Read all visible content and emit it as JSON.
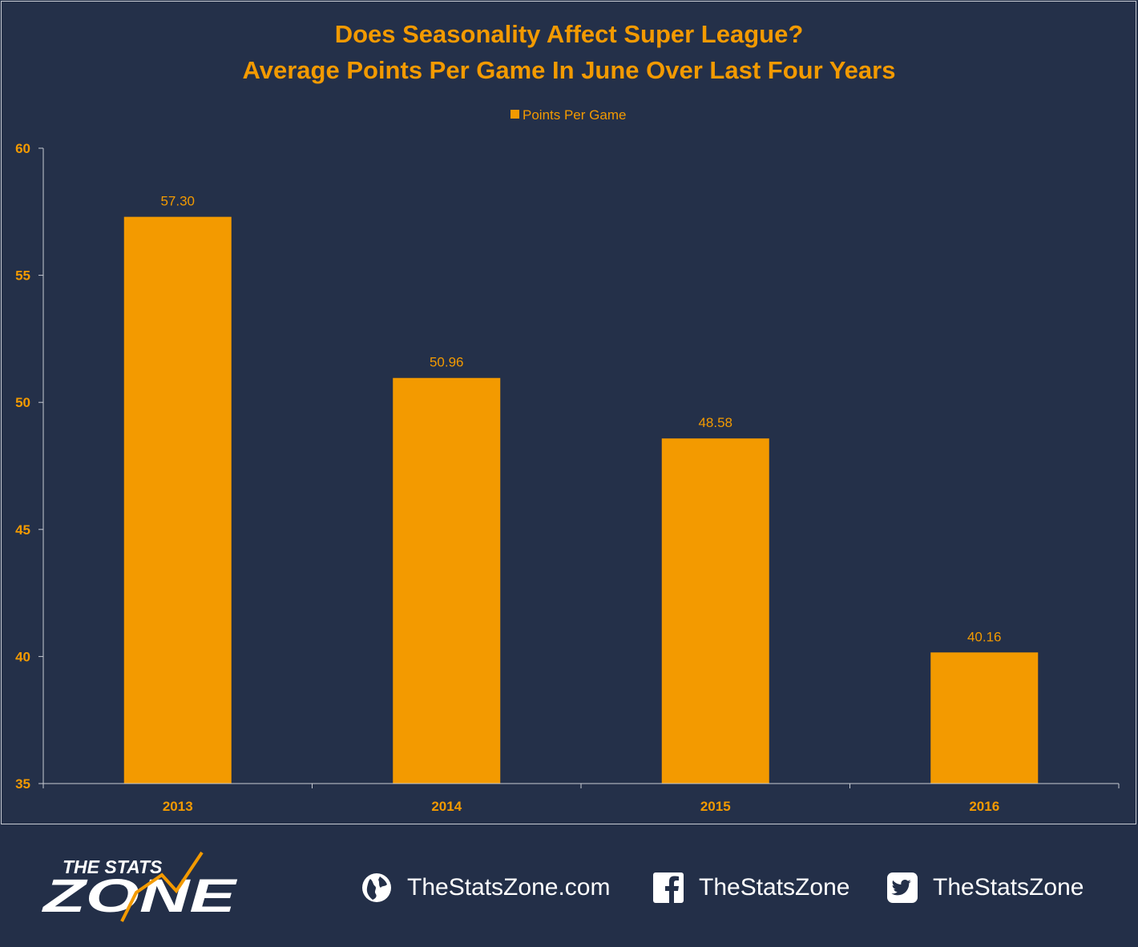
{
  "chart_data": {
    "type": "bar",
    "title": "Does Seasonality Affect Super League?",
    "subtitle": "Average Points Per Game In June Over Last Four Years",
    "categories": [
      "2013",
      "2014",
      "2015",
      "2016"
    ],
    "series": [
      {
        "name": "Points Per Game",
        "values": [
          57.3,
          50.96,
          48.58,
          40.16
        ]
      }
    ],
    "value_labels": [
      "57.30",
      "50.96",
      "48.58",
      "40.16"
    ],
    "y_ticks": [
      35,
      40,
      45,
      50,
      55,
      60
    ],
    "ylim": [
      35,
      60
    ],
    "legend_position": "top-center",
    "grid": false,
    "colors": {
      "bar": "#f39a00",
      "text": "#f39a00",
      "background": "#243049"
    }
  },
  "footer": {
    "logo": {
      "line1": "THE STATS",
      "line2": "ZONE"
    },
    "website": {
      "icon": "globe-icon",
      "label": "TheStatsZone.com"
    },
    "facebook": {
      "icon": "facebook-icon",
      "label": "TheStatsZone"
    },
    "twitter": {
      "icon": "twitter-icon",
      "label": "TheStatsZone"
    }
  }
}
